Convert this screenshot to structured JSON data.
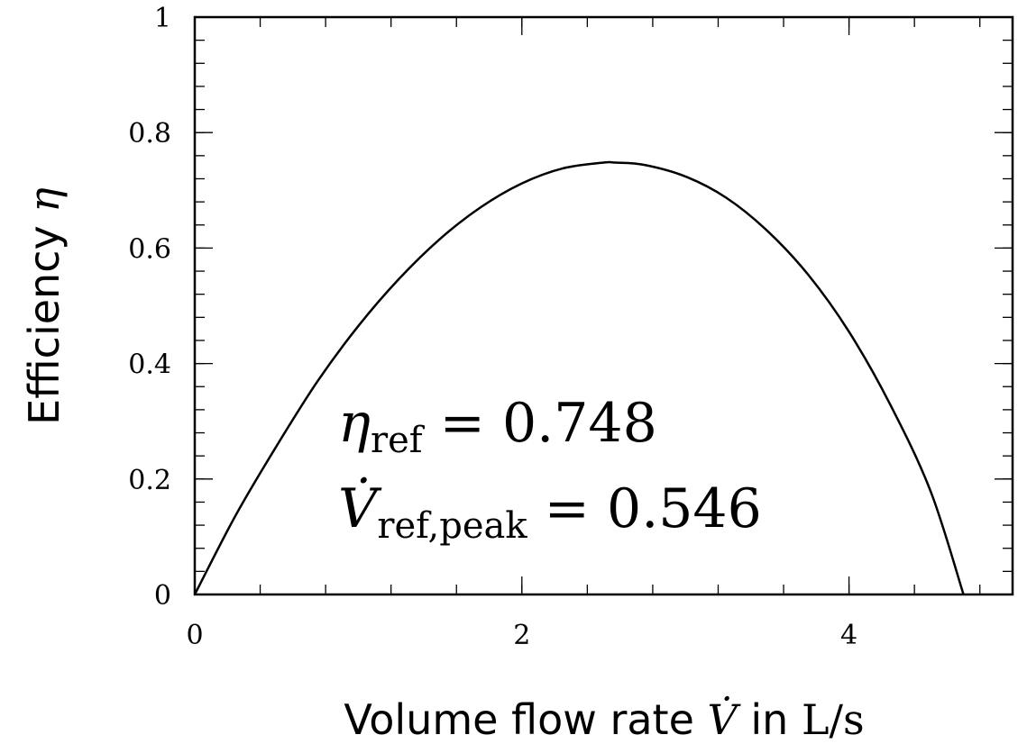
{
  "chart_data": {
    "type": "line",
    "xlabel_text": "Volume flow rate ",
    "xlabel_symbol": "V̇",
    "xlabel_mid": " in ",
    "xlabel_unit": "L/s",
    "ylabel_text": "Efficiency ",
    "ylabel_symbol": "η",
    "xlim": [
      0,
      5
    ],
    "ylim": [
      0,
      1
    ],
    "x_ticks": [
      0,
      2,
      4
    ],
    "x_tick_labels": [
      "0",
      "2",
      "4"
    ],
    "x_minor_step": 0.4,
    "y_ticks": [
      0,
      0.2,
      0.4,
      0.6,
      0.8,
      1
    ],
    "y_tick_labels": [
      "0",
      "0.2",
      "0.4",
      "0.6",
      "0.8",
      "1"
    ],
    "y_minor_step": 0.04,
    "grid": false,
    "series": [
      {
        "x": [
          0,
          0.25,
          0.5,
          0.75,
          1.0,
          1.25,
          1.5,
          1.75,
          2.0,
          2.25,
          2.5,
          2.57,
          2.75,
          3.0,
          3.25,
          3.5,
          3.75,
          4.0,
          4.25,
          4.5,
          4.7
        ],
        "y": [
          0,
          0.137,
          0.257,
          0.369,
          0.465,
          0.547,
          0.616,
          0.671,
          0.712,
          0.738,
          0.748,
          0.748,
          0.744,
          0.724,
          0.687,
          0.63,
          0.554,
          0.455,
          0.33,
          0.178,
          0
        ]
      }
    ],
    "annotations": [
      {
        "symbol": "η",
        "subscript": "ref",
        "equals": " = ",
        "value": "0.748"
      },
      {
        "symbol": "V̇",
        "subscript": "ref,peak",
        "equals": " = ",
        "value": "0.546"
      }
    ]
  }
}
